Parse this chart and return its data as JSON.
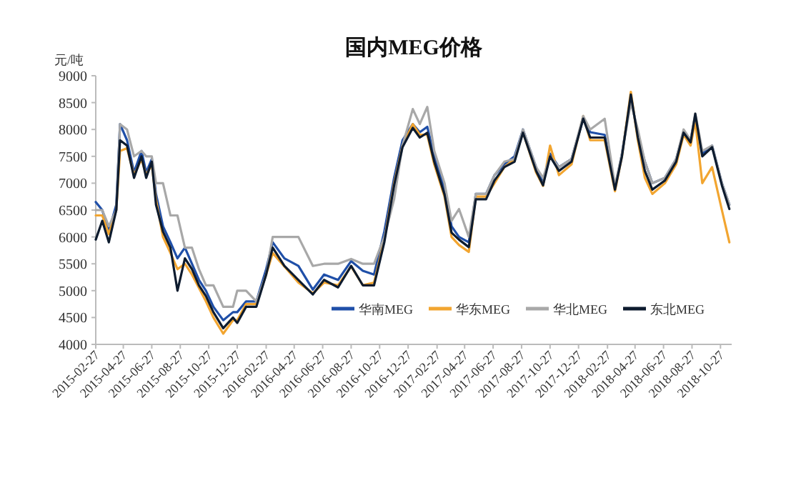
{
  "chart_data": {
    "type": "line",
    "title": "国内MEG价格",
    "ylabel": "元/吨",
    "x": [
      "2015-02-27",
      "2015-03-13",
      "2015-03-27",
      "2015-04-12",
      "2015-04-20",
      "2015-05-05",
      "2015-05-20",
      "2015-06-05",
      "2015-06-15",
      "2015-06-27",
      "2015-07-06",
      "2015-07-21",
      "2015-08-06",
      "2015-08-21",
      "2015-09-06",
      "2015-09-21",
      "2015-10-06",
      "2015-10-21",
      "2015-11-06",
      "2015-11-27",
      "2015-12-18",
      "2015-12-27",
      "2016-01-15",
      "2016-02-06",
      "2016-02-27",
      "2016-03-12",
      "2016-04-06",
      "2016-05-06",
      "2016-06-06",
      "2016-06-30",
      "2016-07-30",
      "2016-08-27",
      "2016-09-21",
      "2016-10-15",
      "2016-11-06",
      "2016-11-27",
      "2016-12-15",
      "2017-01-06",
      "2017-01-21",
      "2017-02-06",
      "2017-02-21",
      "2017-03-15",
      "2017-03-30",
      "2017-04-15",
      "2017-05-06",
      "2017-05-21",
      "2017-06-12",
      "2017-06-30",
      "2017-07-21",
      "2017-08-12",
      "2017-08-30",
      "2017-09-27",
      "2017-10-12",
      "2017-10-27",
      "2017-11-15",
      "2017-12-12",
      "2018-01-06",
      "2018-01-21",
      "2018-02-21",
      "2018-03-15",
      "2018-03-30",
      "2018-04-18",
      "2018-05-03",
      "2018-05-18",
      "2018-06-03",
      "2018-06-30",
      "2018-07-24",
      "2018-08-09",
      "2018-08-24",
      "2018-09-03",
      "2018-09-18",
      "2018-10-09",
      "2018-10-30",
      "2018-11-15"
    ],
    "series": [
      {
        "name": "华南MEG",
        "color": "#1f4fa8",
        "values": [
          6650,
          6500,
          6100,
          6600,
          8100,
          7800,
          7200,
          7600,
          7200,
          7450,
          6800,
          6200,
          5900,
          5600,
          5800,
          5500,
          5200,
          5000,
          4700,
          4450,
          4600,
          4600,
          4800,
          4800,
          5400,
          5900,
          5600,
          5460,
          5020,
          5300,
          5200,
          5550,
          5370,
          5300,
          6100,
          7100,
          7800,
          8100,
          7950,
          8050,
          7500,
          6900,
          6200,
          6000,
          5900,
          6800,
          6800,
          7150,
          7350,
          7500,
          8000,
          7300,
          7000,
          7550,
          7300,
          7450,
          8200,
          7950,
          7900,
          6900,
          7550,
          8600,
          7900,
          7400,
          7000,
          7100,
          7450,
          7950,
          7800,
          8250,
          7550,
          7700,
          7000,
          6600
        ]
      },
      {
        "name": "华东MEG",
        "color": "#f2a530",
        "values": [
          6400,
          6400,
          6050,
          6500,
          7600,
          7650,
          7150,
          7450,
          7150,
          7350,
          6700,
          6000,
          5700,
          5400,
          5500,
          5300,
          5050,
          4800,
          4500,
          4200,
          4450,
          4450,
          4750,
          4750,
          5300,
          5700,
          5450,
          5150,
          4950,
          5150,
          5100,
          5450,
          5100,
          5150,
          5950,
          7000,
          7700,
          8100,
          7900,
          7900,
          7350,
          6750,
          6000,
          5850,
          5720,
          6750,
          6750,
          7000,
          7300,
          7450,
          7950,
          7200,
          6950,
          7700,
          7150,
          7350,
          8250,
          7800,
          7800,
          6850,
          7500,
          8700,
          7800,
          7100,
          6800,
          7000,
          7350,
          7900,
          7700,
          8150,
          7000,
          7300,
          6500,
          5900
        ]
      },
      {
        "name": "华北MEG",
        "color": "#a8a8a8",
        "values": [
          6500,
          6500,
          6200,
          6500,
          8100,
          8000,
          7500,
          7600,
          7500,
          7500,
          7000,
          7000,
          6400,
          6400,
          5800,
          5800,
          5400,
          5100,
          5100,
          4700,
          4700,
          5000,
          5000,
          4800,
          5300,
          6000,
          6000,
          6000,
          5460,
          5500,
          5500,
          5590,
          5500,
          5500,
          6000,
          6700,
          7700,
          8380,
          8100,
          8420,
          7600,
          7000,
          6300,
          6520,
          6000,
          6800,
          6800,
          7150,
          7400,
          7450,
          8000,
          7300,
          7100,
          7500,
          7300,
          7450,
          8250,
          8000,
          8200,
          6950,
          7550,
          8500,
          8000,
          7400,
          7000,
          7100,
          7450,
          8000,
          7800,
          8300,
          7600,
          7700,
          7000,
          6600
        ]
      },
      {
        "name": "东北MEG",
        "color": "#0d1b2e",
        "values": [
          5950,
          6300,
          5900,
          6500,
          7800,
          7700,
          7100,
          7500,
          7100,
          7400,
          6600,
          6100,
          5800,
          5000,
          5600,
          5400,
          5100,
          4900,
          4600,
          4300,
          4500,
          4400,
          4700,
          4700,
          5300,
          5800,
          5460,
          5200,
          4930,
          5200,
          5060,
          5460,
          5100,
          5100,
          5900,
          6960,
          7670,
          8030,
          7850,
          7940,
          7400,
          6790,
          6080,
          5950,
          5810,
          6700,
          6700,
          7050,
          7300,
          7400,
          7940,
          7230,
          6960,
          7500,
          7230,
          7400,
          8200,
          7850,
          7850,
          6880,
          7500,
          8650,
          7850,
          7230,
          6880,
          7050,
          7400,
          7940,
          7760,
          8290,
          7500,
          7670,
          6960,
          6520
        ]
      }
    ],
    "xlim": [
      "2015-02-27",
      "2018-11-20"
    ],
    "xticks": [
      "2015-02-27",
      "2015-04-27",
      "2015-06-27",
      "2015-08-27",
      "2015-10-27",
      "2015-12-27",
      "2016-02-27",
      "2016-04-27",
      "2016-06-27",
      "2016-08-27",
      "2016-10-27",
      "2016-12-27",
      "2017-02-27",
      "2017-04-27",
      "2017-06-27",
      "2017-08-27",
      "2017-10-27",
      "2017-12-27",
      "2018-02-27",
      "2018-04-27",
      "2018-06-27",
      "2018-08-27",
      "2018-10-27"
    ],
    "ylim": [
      4000,
      9000
    ],
    "yticks": [
      4000,
      4500,
      5000,
      5500,
      6000,
      6500,
      7000,
      7500,
      8000,
      8500,
      9000
    ],
    "grid": false,
    "legend": "bottom",
    "marker": "none",
    "line_style": "solid"
  }
}
